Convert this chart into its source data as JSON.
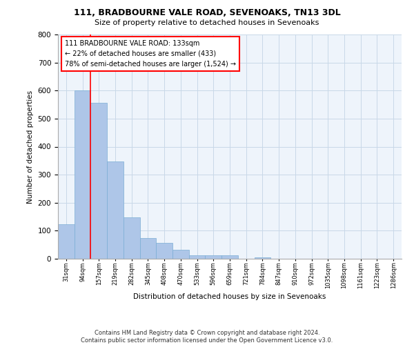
{
  "title1": "111, BRADBOURNE VALE ROAD, SEVENOAKS, TN13 3DL",
  "title2": "Size of property relative to detached houses in Sevenoaks",
  "xlabel": "Distribution of detached houses by size in Sevenoaks",
  "ylabel": "Number of detached properties",
  "categories": [
    "31sqm",
    "94sqm",
    "157sqm",
    "219sqm",
    "282sqm",
    "345sqm",
    "408sqm",
    "470sqm",
    "533sqm",
    "596sqm",
    "659sqm",
    "721sqm",
    "784sqm",
    "847sqm",
    "910sqm",
    "972sqm",
    "1035sqm",
    "1098sqm",
    "1161sqm",
    "1223sqm",
    "1286sqm"
  ],
  "values": [
    122,
    601,
    557,
    348,
    148,
    75,
    57,
    33,
    12,
    12,
    12,
    0,
    5,
    0,
    0,
    0,
    0,
    0,
    0,
    0,
    0
  ],
  "bar_color": "#aec6e8",
  "bar_edge_color": "#7aadd4",
  "vline_x": 1.5,
  "vline_color": "red",
  "annotation_text": "111 BRADBOURNE VALE ROAD: 133sqm\n← 22% of detached houses are smaller (433)\n78% of semi-detached houses are larger (1,524) →",
  "annotation_box_color": "white",
  "annotation_border_color": "red",
  "grid_color": "#c8d8e8",
  "background_color": "#eef4fb",
  "footer": "Contains HM Land Registry data © Crown copyright and database right 2024.\nContains public sector information licensed under the Open Government Licence v3.0.",
  "ylim": [
    0,
    800
  ],
  "yticks": [
    0,
    100,
    200,
    300,
    400,
    500,
    600,
    700,
    800
  ]
}
